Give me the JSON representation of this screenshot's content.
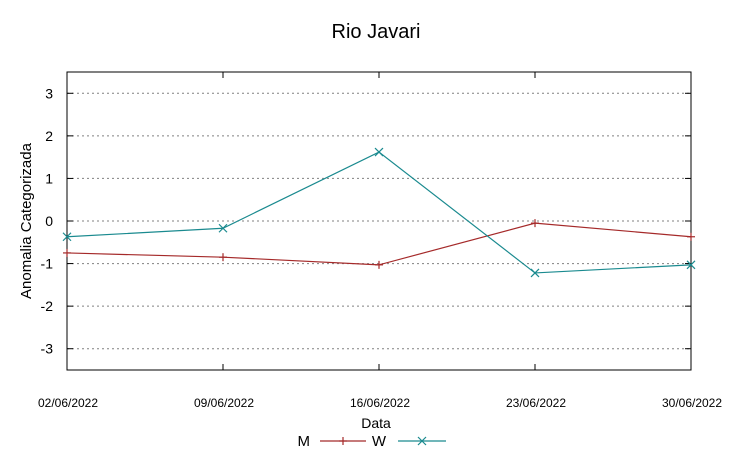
{
  "chart_data": {
    "type": "line",
    "title": "Rio Javari",
    "xlabel": "Data",
    "ylabel": "Anomalia Categorizada",
    "categories": [
      "02/06/2022",
      "09/06/2022",
      "16/06/2022",
      "23/06/2022",
      "30/06/2022"
    ],
    "y_ticks": [
      "3",
      "2",
      "1",
      "0",
      "-1",
      "-2",
      "-3"
    ],
    "ylim": [
      -3.5,
      3.5
    ],
    "grid": true,
    "legend_position": "bottom",
    "series": [
      {
        "name": "M",
        "color": "#a52a2a",
        "marker": "plus",
        "values": [
          -0.75,
          -0.85,
          -1.03,
          -0.05,
          -0.37
        ]
      },
      {
        "name": "W",
        "color": "#1a8a8f",
        "marker": "cross",
        "values": [
          -0.37,
          -0.17,
          1.62,
          -1.22,
          -1.03
        ]
      }
    ]
  }
}
